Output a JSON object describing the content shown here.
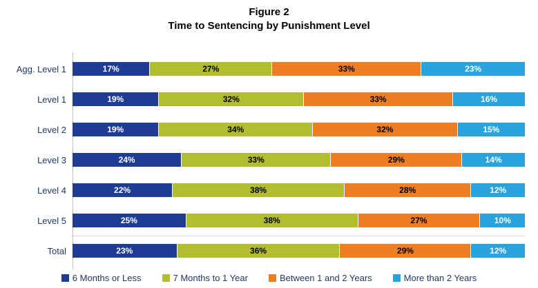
{
  "chart_data": {
    "type": "bar",
    "orientation": "horizontal-stacked",
    "title": "Figure 2",
    "subtitle": "Time to Sentencing by Punishment Level",
    "value_suffix": "%",
    "xlim": [
      0,
      100
    ],
    "grid": false,
    "legend_position": "bottom",
    "categories": [
      "Agg. Level 1",
      "Level 1",
      "Level 2",
      "Level 3",
      "Level 4",
      "Level 5",
      "Total"
    ],
    "series": [
      {
        "name": "6 Months or Less",
        "color": "#1f3c94",
        "label_color": "#ffffff",
        "values": [
          17,
          19,
          19,
          24,
          22,
          25,
          23
        ]
      },
      {
        "name": "7 Months to 1 Year",
        "color": "#b1be32",
        "label_color": "#000000",
        "values": [
          27,
          32,
          34,
          33,
          38,
          38,
          36
        ]
      },
      {
        "name": "Between 1 and 2 Years",
        "color": "#ef7d22",
        "label_color": "#000000",
        "values": [
          33,
          33,
          32,
          29,
          28,
          27,
          29
        ]
      },
      {
        "name": "More than 2 Years",
        "color": "#29a3dc",
        "label_color": "#ffffff",
        "values": [
          23,
          16,
          15,
          14,
          12,
          10,
          12
        ]
      }
    ]
  }
}
